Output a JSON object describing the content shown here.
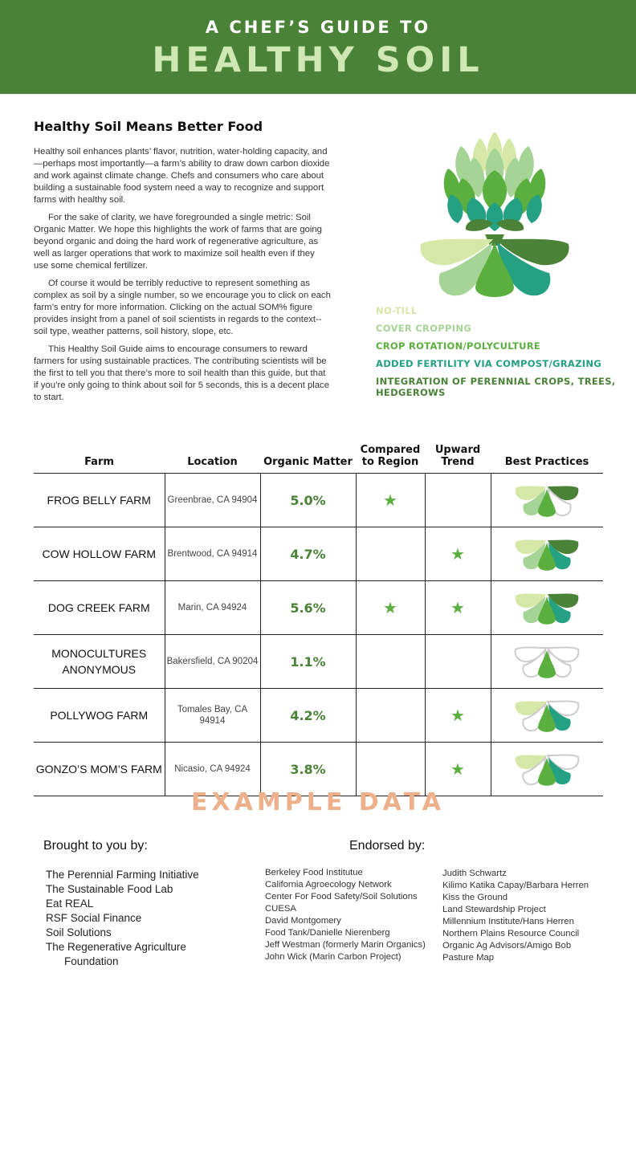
{
  "header": {
    "kicker": "A CHEF’S GUIDE TO",
    "title": "HEALTHY SOIL"
  },
  "intro": {
    "heading": "Healthy Soil Means Better Food",
    "paragraphs": [
      "Healthy soil enhances plants’ flavor, nutrition, water-holding capacity, and—perhaps most importantly—a farm’s ability to draw down carbon dioxide and work against climate change. Chefs and consumers who care about building a sustainable food system need a way to recognize and support farms with healthy soil.",
      "For the sake of clarity, we have foregrounded a single metric: Soil Organic Matter. We hope this highlights the work of farms that are going beyond organic and doing the hard work of regenerative agriculture, as well as larger operations that work to maximize soil health even if they use some chemical fertilizer.",
      "Of course it would be terribly reductive to represent something as complex as soil by a single number, so we encourage you to click on each farm’s entry for more information. Clicking on the actual SOM% figure provides insight from a panel of soil scientists in regards to the context--soil type, weather patterns, soil history, slope, etc.",
      "This Healthy Soil Guide aims to encourage consumers to reward farmers for using sustainable practices. The contributing scientists will be the first to tell you that there’s more to soil health than this guide, but that if you’re only going to think about soil for 5 seconds, this is a decent place to start."
    ]
  },
  "colors": {
    "header_bg": "#4a8237",
    "p1": "#d5e8a8",
    "p2": "#a6d396",
    "p3": "#5aaf3e",
    "p4": "#24a082",
    "p5": "#4a8237",
    "off": "#cccccc",
    "star": "#5aaf3e",
    "example": "#eeb08b"
  },
  "practices": [
    {
      "label": "NO-TILL",
      "color": "#d5e8a8"
    },
    {
      "label": "COVER CROPPING",
      "color": "#a6d396"
    },
    {
      "label": "CROP ROTATION/POLYCULTURE",
      "color": "#5aaf3e"
    },
    {
      "label": "ADDED FERTILITY VIA COMPOST/GRAZING",
      "color": "#24a082"
    },
    {
      "label": "INTEGRATION OF PERENNIAL CROPS, TREES, HEDGEROWS",
      "color": "#4a8237"
    }
  ],
  "table": {
    "headers": [
      "Farm",
      "Location",
      "Organic Matter",
      "Compared to Region",
      "Upward Trend",
      "Best Practices"
    ],
    "rows": [
      {
        "farm": "FROG BELLY FARM",
        "location": "Greenbrae, CA 94904",
        "om": "5.0%",
        "region": true,
        "trend": false,
        "practices": [
          true,
          true,
          true,
          false,
          true
        ]
      },
      {
        "farm": "COW HOLLOW FARM",
        "location": "Brentwood, CA 94914",
        "om": "4.7%",
        "region": false,
        "trend": true,
        "practices": [
          true,
          true,
          true,
          true,
          true
        ]
      },
      {
        "farm": "DOG CREEK FARM",
        "location": "Marin, CA 94924",
        "om": "5.6%",
        "region": true,
        "trend": true,
        "practices": [
          true,
          true,
          true,
          true,
          true
        ]
      },
      {
        "farm": "MONOCULTURES ANONYMOUS",
        "location": "Bakersfield, CA 90204",
        "om": "1.1%",
        "region": false,
        "trend": false,
        "practices": [
          false,
          false,
          true,
          false,
          false
        ]
      },
      {
        "farm": "POLLYWOG FARM",
        "location": "Tomales Bay, CA 94914",
        "om": "4.2%",
        "region": false,
        "trend": true,
        "practices": [
          true,
          false,
          true,
          true,
          false
        ]
      },
      {
        "farm": "GONZO’S MOM’S FARM",
        "location": "Nicasio, CA 94924",
        "om": "3.8%",
        "region": false,
        "trend": true,
        "practices": [
          true,
          false,
          true,
          true,
          false
        ]
      }
    ]
  },
  "example_label": "EXAMPLE DATA",
  "brought": {
    "heading": "Brought to you by:",
    "items": [
      "The Perennial Farming Initiative",
      "The Sustainable Food Lab",
      "Eat REAL",
      "RSF Social Finance",
      "Soil Solutions",
      "The Regenerative Agriculture Foundation"
    ]
  },
  "endorsed": {
    "heading": "Endorsed by:",
    "col1": [
      "Berkeley Food Institutue",
      "California Agroecology Network",
      "Center For Food Safety/Soil Solutions",
      "CUESA",
      "David Montgomery",
      "Food Tank/Danielle Nierenberg",
      "Jeff Westman (formerly Marin Organics)",
      "John Wick (Marin Carbon Project)"
    ],
    "col2": [
      "Judith Schwartz",
      "Kilimo Katika Capay/Barbara Herren",
      "Kiss the Ground",
      "Land Stewardship Project",
      "Millennium Institute/Hans Herren",
      "Northern Plains Resource Council",
      "Organic Ag Advisors/Amigo Bob",
      "Pasture Map"
    ]
  }
}
